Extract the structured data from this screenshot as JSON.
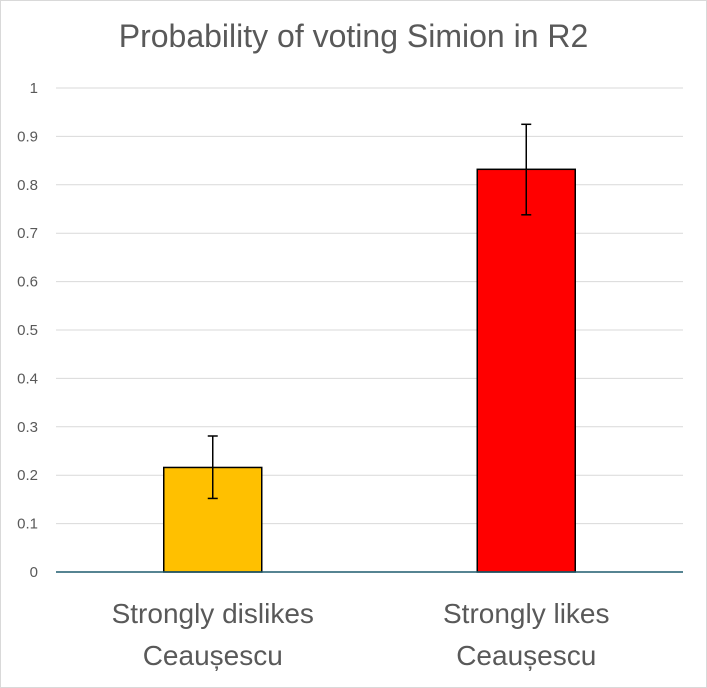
{
  "chart_data": {
    "type": "bar",
    "title": "Probability of voting Simion in R2",
    "categories": [
      "Strongly dislikes Ceaușescu",
      "Strongly likes Ceaușescu"
    ],
    "category_lines": [
      [
        "Strongly dislikes",
        "Ceaușescu"
      ],
      [
        "Strongly likes",
        "Ceaușescu"
      ]
    ],
    "values": [
      0.216,
      0.832
    ],
    "error_bars": [
      {
        "low": 0.152,
        "high": 0.281
      },
      {
        "low": 0.738,
        "high": 0.925
      }
    ],
    "bar_colors": [
      "#ffc000",
      "#ff0000"
    ],
    "yticks": [
      "0",
      "0.1",
      "0.2",
      "0.3",
      "0.4",
      "0.5",
      "0.6",
      "0.7",
      "0.8",
      "0.9",
      "1"
    ],
    "ylim": [
      0,
      1
    ],
    "grid": true,
    "xlabel": "",
    "ylabel": ""
  }
}
